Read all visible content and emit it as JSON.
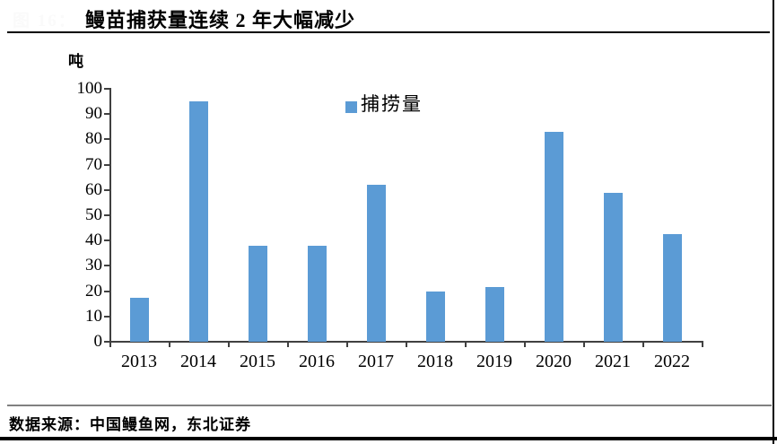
{
  "figure_label": "图 16：",
  "title": "鳗苗捕获量连续 2 年大幅减少",
  "footer": {
    "source": "数据来源：中国鳗鱼网，东北证券"
  },
  "colors": {
    "bar": "#5B9BD5",
    "axis": "#404040",
    "text": "#000000",
    "footer_divider": "#808080",
    "faint_label": "#fafafa"
  },
  "chart_data": {
    "type": "bar",
    "title": "鳗苗捕获量连续 2 年大幅减少",
    "unit_label": "吨",
    "categories": [
      "2013",
      "2014",
      "2015",
      "2016",
      "2017",
      "2018",
      "2019",
      "2020",
      "2021",
      "2022"
    ],
    "series": [
      {
        "name": "捕捞量",
        "values": [
          17.5,
          95,
          38,
          38,
          62,
          20,
          21.5,
          83,
          59,
          42.5
        ]
      }
    ],
    "ylim": [
      0,
      100
    ],
    "ytick_step": 10,
    "grid": false,
    "legend_position": "top-center",
    "bar_color": "#5B9BD5"
  }
}
